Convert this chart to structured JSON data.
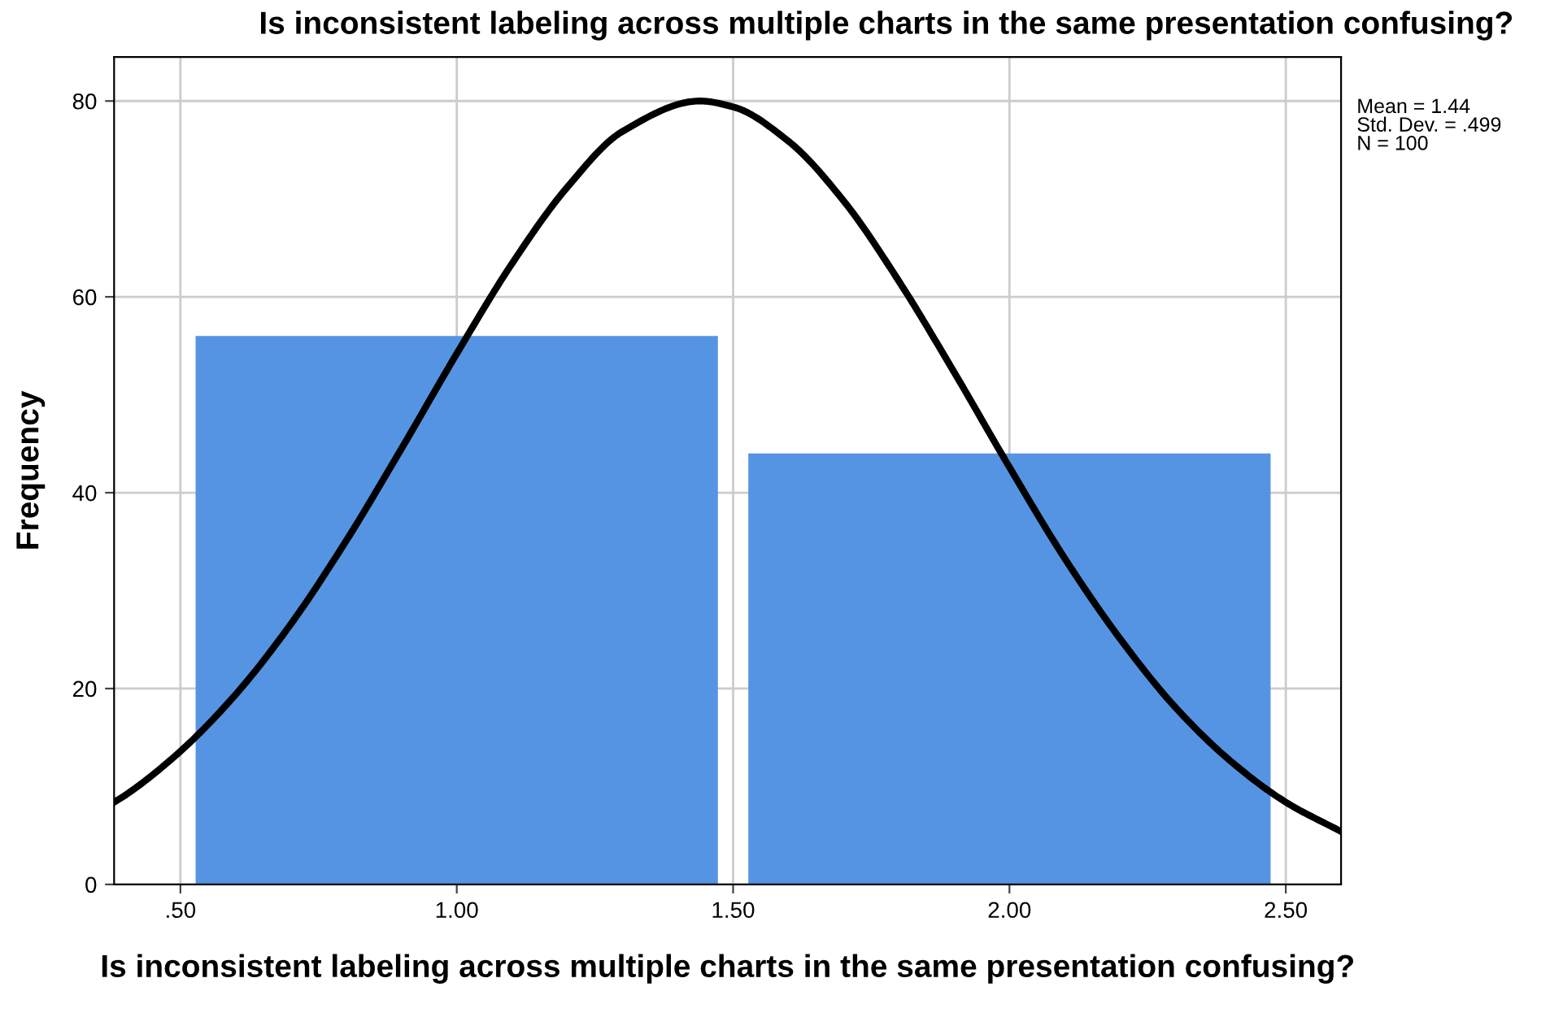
{
  "chart_data": {
    "type": "histogram",
    "title": "Is inconsistent labeling across multiple charts in the same presentation confusing?",
    "xlabel": "Is inconsistent labeling across multiple charts in the same presentation confusing?",
    "ylabel": "Frequency",
    "annotations": [
      "Mean = 1.44",
      "Std. Dev. = .499",
      "N = 100"
    ],
    "series": [
      {
        "type": "histogram",
        "bins": [
          0.5,
          1.5,
          2.5
        ],
        "values": [
          56,
          44
        ],
        "color": "#5594e2"
      },
      {
        "type": "line",
        "color": "#000000",
        "x": [
          0.38,
          0.4,
          0.5,
          0.6,
          0.7,
          0.8,
          0.9,
          1.0,
          1.1,
          1.2,
          1.3,
          1.44,
          1.5,
          1.6,
          1.7,
          1.8,
          1.9,
          2.0,
          2.1,
          2.2,
          2.3,
          2.4,
          2.5,
          2.6
        ],
        "values": [
          8.4,
          9.1,
          13.6,
          19.4,
          26.6,
          35.1,
          44.5,
          54.2,
          63.4,
          71.2,
          76.9,
          80.0,
          79.4,
          75.9,
          69.8,
          61.6,
          52.3,
          42.6,
          33.3,
          25.1,
          18.1,
          12.6,
          8.4,
          5.4
        ]
      }
    ],
    "xlim": [
      0.38,
      2.6
    ],
    "ylim": [
      0,
      84.5
    ],
    "xticks": [
      {
        "value": 0.5,
        "label": ".50"
      },
      {
        "value": 1.0,
        "label": "1.00"
      },
      {
        "value": 1.5,
        "label": "1.50"
      },
      {
        "value": 2.0,
        "label": "2.00"
      },
      {
        "value": 2.5,
        "label": "2.50"
      }
    ],
    "yticks": [
      0,
      20,
      40,
      60,
      80
    ],
    "grid": true
  }
}
